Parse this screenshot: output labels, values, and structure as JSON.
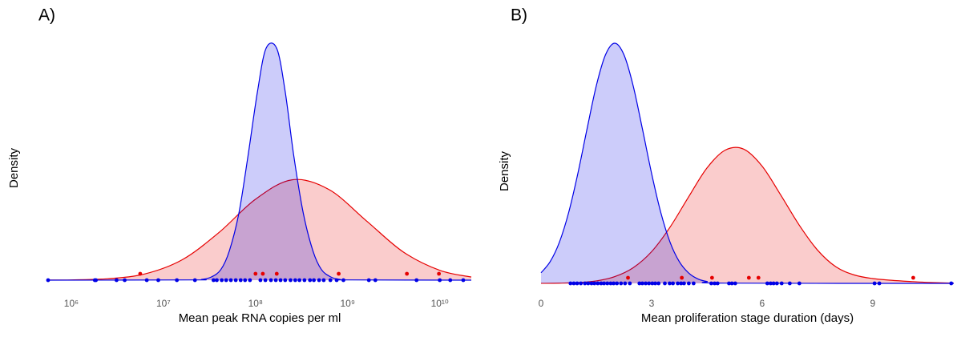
{
  "chart_data": [
    {
      "type": "density",
      "title": "A)",
      "x_label": "Mean peak RNA copies per ml",
      "y_label": "Density",
      "xscale": "log",
      "xlim": [
        560000.0,
        22000000000.0
      ],
      "ylim": [
        0,
        1
      ],
      "xticks": [
        {
          "value": 1000000.0,
          "label": "10⁶"
        },
        {
          "value": 10000000.0,
          "label": "10⁷"
        },
        {
          "value": 100000000.0,
          "label": "10⁸"
        },
        {
          "value": 1000000000.0,
          "label": "10⁹"
        },
        {
          "value": 10000000000.0,
          "label": "10¹⁰"
        }
      ],
      "series": [
        {
          "color": "#e60000",
          "x": [
            560000.0,
            1000000.0,
            2500000.0,
            6300000.0,
            16000000.0,
            40000000.0,
            100000000.0,
            250000000.0,
            630000000.0,
            1600000000.0,
            4000000000.0,
            10000000000.0,
            22000000000.0
          ],
          "values": [
            0.0003,
            0.001,
            0.006,
            0.026,
            0.085,
            0.198,
            0.337,
            0.418,
            0.377,
            0.247,
            0.118,
            0.041,
            0.013
          ]
        },
        {
          "color": "#0000e6",
          "x": [
            560000.0,
            21000000.0,
            26000000.0,
            33000000.0,
            42000000.0,
            52000000.0,
            66000000.0,
            83000000.0,
            105000000.0,
            130000000.0,
            170000000.0,
            210000000.0,
            260000000.0,
            330000000.0,
            420000000.0,
            520000000.0,
            660000000.0,
            830000000.0,
            1050000000.0,
            22000000000.0
          ],
          "values": [
            0,
            0.001,
            0.003,
            0.013,
            0.044,
            0.122,
            0.279,
            0.519,
            0.785,
            0.965,
            0.965,
            0.785,
            0.519,
            0.279,
            0.122,
            0.044,
            0.013,
            0.003,
            0.001,
            0
          ]
        }
      ],
      "points": [
        {
          "color": "#0000e6",
          "x": [
            560000.0,
            1800000.0,
            1850000.0,
            3100000.0,
            3800000.0,
            6600000.0,
            8800000.0,
            14000000.0,
            22000000.0,
            35000000.0,
            38000000.0,
            43000000.0,
            48000000.0,
            54000000.0,
            61000000.0,
            69000000.0,
            77000000.0,
            87000000.0,
            113000000.0,
            128000000.0,
            147000000.0,
            166000000.0,
            187000000.0,
            210000000.0,
            240000000.0,
            270000000.0,
            300000000.0,
            340000000.0,
            390000000.0,
            430000000.0,
            490000000.0,
            550000000.0,
            650000000.0,
            760000000.0,
            900000000.0,
            1700000000.0,
            2000000000.0,
            5600000000.0,
            10000000000.0,
            13000000000.0,
            18000000000.0
          ]
        },
        {
          "color": "#e60000",
          "x": [
            5600000.0,
            100000000.0,
            120000000.0,
            170000000.0,
            800000000.0,
            4400000000.0,
            9800000000.0
          ]
        }
      ]
    },
    {
      "type": "density",
      "title": "B)",
      "x_label": "Mean proliferation stage duration (days)",
      "y_label": "Density",
      "xscale": "linear",
      "xlim": [
        0,
        11.2
      ],
      "ylim": [
        0,
        1
      ],
      "xticks": [
        0,
        3,
        6,
        9
      ],
      "series": [
        {
          "color": "#e60000",
          "x": [
            0,
            0.5,
            1,
            1.5,
            2,
            2.5,
            3,
            3.5,
            4,
            4.5,
            5,
            5.5,
            6,
            6.5,
            7,
            7.5,
            8,
            8.5,
            9,
            9.5,
            10,
            10.5,
            11.2
          ],
          "values": [
            0.0002,
            0.0009,
            0.0033,
            0.0103,
            0.028,
            0.065,
            0.132,
            0.234,
            0.359,
            0.48,
            0.555,
            0.559,
            0.488,
            0.369,
            0.244,
            0.139,
            0.069,
            0.035,
            0.02,
            0.013,
            0.008,
            0.004,
            0.001
          ]
        },
        {
          "color": "#0000e6",
          "x": [
            0,
            0.25,
            0.5,
            0.75,
            1,
            1.25,
            1.5,
            1.75,
            2,
            2.25,
            2.5,
            2.75,
            3,
            3.25,
            3.5,
            3.75,
            4,
            4.25,
            4.5,
            5,
            11.2
          ],
          "values": [
            0.044,
            0.091,
            0.172,
            0.295,
            0.458,
            0.644,
            0.823,
            0.952,
            1.0,
            0.952,
            0.823,
            0.644,
            0.458,
            0.295,
            0.172,
            0.091,
            0.044,
            0.019,
            0.008,
            0.001,
            0
          ]
        }
      ],
      "points": [
        {
          "color": "#0000e6",
          "x": [
            0.8,
            0.89,
            0.98,
            1.08,
            1.19,
            1.28,
            1.37,
            1.45,
            1.54,
            1.63,
            1.71,
            1.8,
            1.89,
            1.97,
            2.06,
            2.17,
            2.28,
            2.41,
            2.67,
            2.75,
            2.84,
            2.93,
            3.02,
            3.1,
            3.19,
            3.36,
            3.49,
            3.58,
            3.71,
            3.8,
            3.88,
            4.01,
            4.14,
            4.62,
            4.71,
            4.79,
            5.1,
            5.18,
            5.27,
            6.14,
            6.23,
            6.31,
            6.4,
            6.53,
            6.75,
            7.01,
            9.05,
            9.18,
            11.13
          ]
        },
        {
          "color": "#e60000",
          "x": [
            2.36,
            3.82,
            4.64,
            5.64,
            5.9,
            10.1
          ]
        }
      ]
    }
  ]
}
